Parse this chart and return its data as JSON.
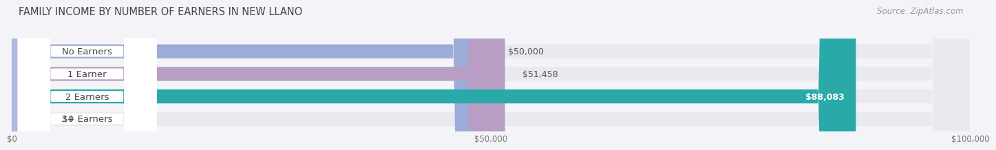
{
  "title": "FAMILY INCOME BY NUMBER OF EARNERS IN NEW LLANO",
  "source": "Source: ZipAtlas.com",
  "categories": [
    "No Earners",
    "1 Earner",
    "2 Earners",
    "3+ Earners"
  ],
  "values": [
    50000,
    51458,
    88083,
    0
  ],
  "bar_colors": [
    "#9bacd8",
    "#b89ec4",
    "#29a9a8",
    "#b0b8e0"
  ],
  "bar_bg_color": "#e8eaf0",
  "label_bg_color": "#ffffff",
  "value_inside": [
    false,
    false,
    true,
    false
  ],
  "value_labels": [
    "$50,000",
    "$51,458",
    "$88,083",
    "$0"
  ],
  "x_max": 100000,
  "x_ticks": [
    0,
    50000,
    100000
  ],
  "x_tick_labels": [
    "$0",
    "$50,000",
    "$100,000"
  ],
  "background_color": "#f4f4f8",
  "title_fontsize": 10.5,
  "source_fontsize": 8.5,
  "cat_fontsize": 9.5,
  "value_fontsize": 9
}
